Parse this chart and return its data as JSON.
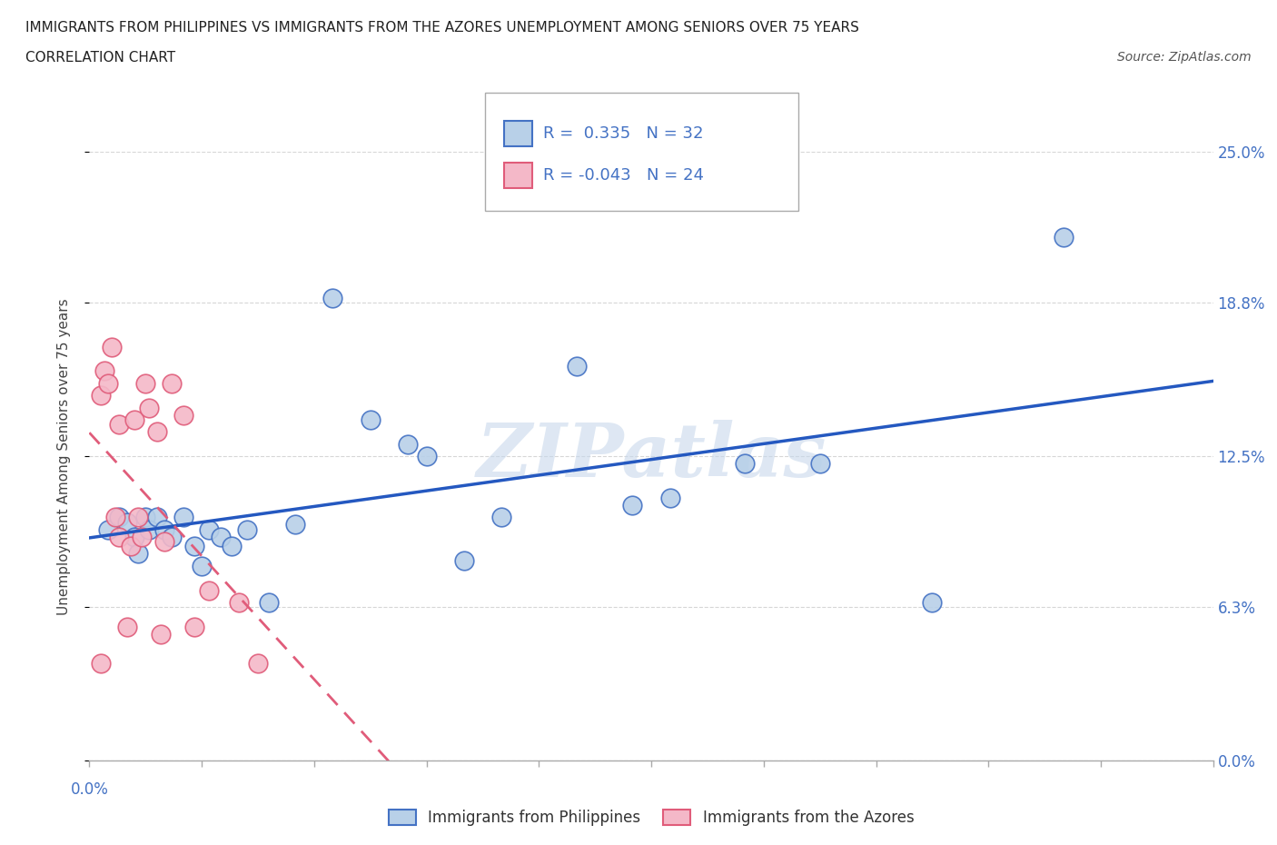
{
  "title_line1": "IMMIGRANTS FROM PHILIPPINES VS IMMIGRANTS FROM THE AZORES UNEMPLOYMENT AMONG SENIORS OVER 75 YEARS",
  "title_line2": "CORRELATION CHART",
  "source_text": "Source: ZipAtlas.com",
  "ylabel": "Unemployment Among Seniors over 75 years",
  "xmin": 0.0,
  "xmax": 0.3,
  "ymin": 0.0,
  "ymax": 0.25,
  "yticks": [
    0.0,
    0.063,
    0.125,
    0.188,
    0.25
  ],
  "ytick_labels": [
    "0.0%",
    "6.3%",
    "12.5%",
    "18.8%",
    "25.0%"
  ],
  "xticks": [
    0.0,
    0.03,
    0.06,
    0.09,
    0.12,
    0.15,
    0.18,
    0.21,
    0.24,
    0.27,
    0.3
  ],
  "philippines_R": 0.335,
  "philippines_N": 32,
  "azores_R": -0.043,
  "azores_N": 24,
  "watermark": "ZIPatlas",
  "philippines_color": "#b8d0e8",
  "philippines_edge_color": "#4472c4",
  "azores_color": "#f4b8c8",
  "azores_edge_color": "#e05c7a",
  "philippines_line_color": "#2458c0",
  "azores_line_color": "#e05c7a",
  "philippines_scatter_x": [
    0.005,
    0.008,
    0.01,
    0.012,
    0.013,
    0.015,
    0.016,
    0.018,
    0.02,
    0.022,
    0.025,
    0.028,
    0.03,
    0.032,
    0.035,
    0.038,
    0.042,
    0.048,
    0.055,
    0.065,
    0.075,
    0.085,
    0.09,
    0.1,
    0.11,
    0.13,
    0.145,
    0.155,
    0.175,
    0.195,
    0.225,
    0.26
  ],
  "philippines_scatter_y": [
    0.095,
    0.1,
    0.098,
    0.092,
    0.085,
    0.1,
    0.095,
    0.1,
    0.095,
    0.092,
    0.1,
    0.088,
    0.08,
    0.095,
    0.092,
    0.088,
    0.095,
    0.065,
    0.097,
    0.19,
    0.14,
    0.13,
    0.125,
    0.082,
    0.1,
    0.162,
    0.105,
    0.108,
    0.122,
    0.122,
    0.065,
    0.215
  ],
  "azores_scatter_x": [
    0.003,
    0.003,
    0.004,
    0.005,
    0.006,
    0.007,
    0.008,
    0.008,
    0.01,
    0.011,
    0.012,
    0.013,
    0.014,
    0.015,
    0.016,
    0.018,
    0.019,
    0.02,
    0.022,
    0.025,
    0.028,
    0.032,
    0.04,
    0.045
  ],
  "azores_scatter_y": [
    0.04,
    0.15,
    0.16,
    0.155,
    0.17,
    0.1,
    0.092,
    0.138,
    0.055,
    0.088,
    0.14,
    0.1,
    0.092,
    0.155,
    0.145,
    0.135,
    0.052,
    0.09,
    0.155,
    0.142,
    0.055,
    0.07,
    0.065,
    0.04
  ],
  "legend_label_philippines": "Immigrants from Philippines",
  "legend_label_azores": "Immigrants from the Azores",
  "background_color": "#ffffff",
  "grid_color": "#cccccc",
  "label_color": "#4472c4"
}
